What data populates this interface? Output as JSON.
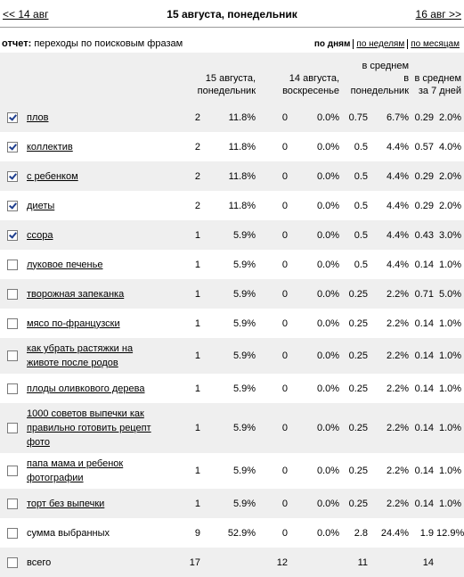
{
  "nav": {
    "prev": "<< 14 авг",
    "title": "15 августа, понедельник",
    "next": "16 авг >>"
  },
  "report": {
    "label": "отчет:",
    "name": "переходы по поисковым фразам"
  },
  "periods": [
    {
      "text": "по дням",
      "active": true
    },
    {
      "text": "по неделям",
      "active": false
    },
    {
      "text": "по месяцам",
      "active": false
    }
  ],
  "table": {
    "headers": [
      [
        "15 августа,",
        "понедельник"
      ],
      [
        "14 августа,",
        "воскресенье"
      ],
      [
        "в среднем",
        "в",
        "понедельник"
      ],
      [
        "в среднем",
        "за 7 дней"
      ]
    ],
    "rows": [
      {
        "phrase": "плов",
        "checked": true,
        "cells": [
          "2",
          "11.8%",
          "0",
          "0.0%",
          "0.75",
          "6.7%",
          "0.29",
          "2.0%"
        ]
      },
      {
        "phrase": "коллектив",
        "checked": true,
        "cells": [
          "2",
          "11.8%",
          "0",
          "0.0%",
          "0.5",
          "4.4%",
          "0.57",
          "4.0%"
        ]
      },
      {
        "phrase": "с ребенком",
        "checked": true,
        "cells": [
          "2",
          "11.8%",
          "0",
          "0.0%",
          "0.5",
          "4.4%",
          "0.29",
          "2.0%"
        ]
      },
      {
        "phrase": "диеты",
        "checked": true,
        "cells": [
          "2",
          "11.8%",
          "0",
          "0.0%",
          "0.5",
          "4.4%",
          "0.29",
          "2.0%"
        ]
      },
      {
        "phrase": "ссора",
        "checked": true,
        "cells": [
          "1",
          "5.9%",
          "0",
          "0.0%",
          "0.5",
          "4.4%",
          "0.43",
          "3.0%"
        ]
      },
      {
        "phrase": "луковое печенье",
        "checked": false,
        "cells": [
          "1",
          "5.9%",
          "0",
          "0.0%",
          "0.5",
          "4.4%",
          "0.14",
          "1.0%"
        ]
      },
      {
        "phrase": "творожная запеканка",
        "checked": false,
        "cells": [
          "1",
          "5.9%",
          "0",
          "0.0%",
          "0.25",
          "2.2%",
          "0.71",
          "5.0%"
        ]
      },
      {
        "phrase": "мясо по-французски",
        "checked": false,
        "cells": [
          "1",
          "5.9%",
          "0",
          "0.0%",
          "0.25",
          "2.2%",
          "0.14",
          "1.0%"
        ]
      },
      {
        "phrase": "как убрать растяжки на животе после родов",
        "checked": false,
        "cells": [
          "1",
          "5.9%",
          "0",
          "0.0%",
          "0.25",
          "2.2%",
          "0.14",
          "1.0%"
        ]
      },
      {
        "phrase": "плоды оливкового дерева",
        "checked": false,
        "cells": [
          "1",
          "5.9%",
          "0",
          "0.0%",
          "0.25",
          "2.2%",
          "0.14",
          "1.0%"
        ]
      },
      {
        "phrase": "1000 советов выпечки как правильно готовить рецепт фото",
        "checked": false,
        "cells": [
          "1",
          "5.9%",
          "0",
          "0.0%",
          "0.25",
          "2.2%",
          "0.14",
          "1.0%"
        ]
      },
      {
        "phrase": "папа мама и ребенок фотографии",
        "checked": false,
        "cells": [
          "1",
          "5.9%",
          "0",
          "0.0%",
          "0.25",
          "2.2%",
          "0.14",
          "1.0%"
        ]
      },
      {
        "phrase": "торт без выпечки",
        "checked": false,
        "cells": [
          "1",
          "5.9%",
          "0",
          "0.0%",
          "0.25",
          "2.2%",
          "0.14",
          "1.0%"
        ]
      }
    ],
    "summary": {
      "label": "сумма выбранных",
      "checked": false,
      "cells": [
        "9",
        "52.9%",
        "0",
        "0.0%",
        "2.8",
        "24.4%",
        "1.9",
        "12.9%"
      ]
    },
    "total": {
      "label": "всего",
      "checked": false,
      "cells": [
        "17",
        "12",
        "11",
        "14"
      ]
    }
  }
}
